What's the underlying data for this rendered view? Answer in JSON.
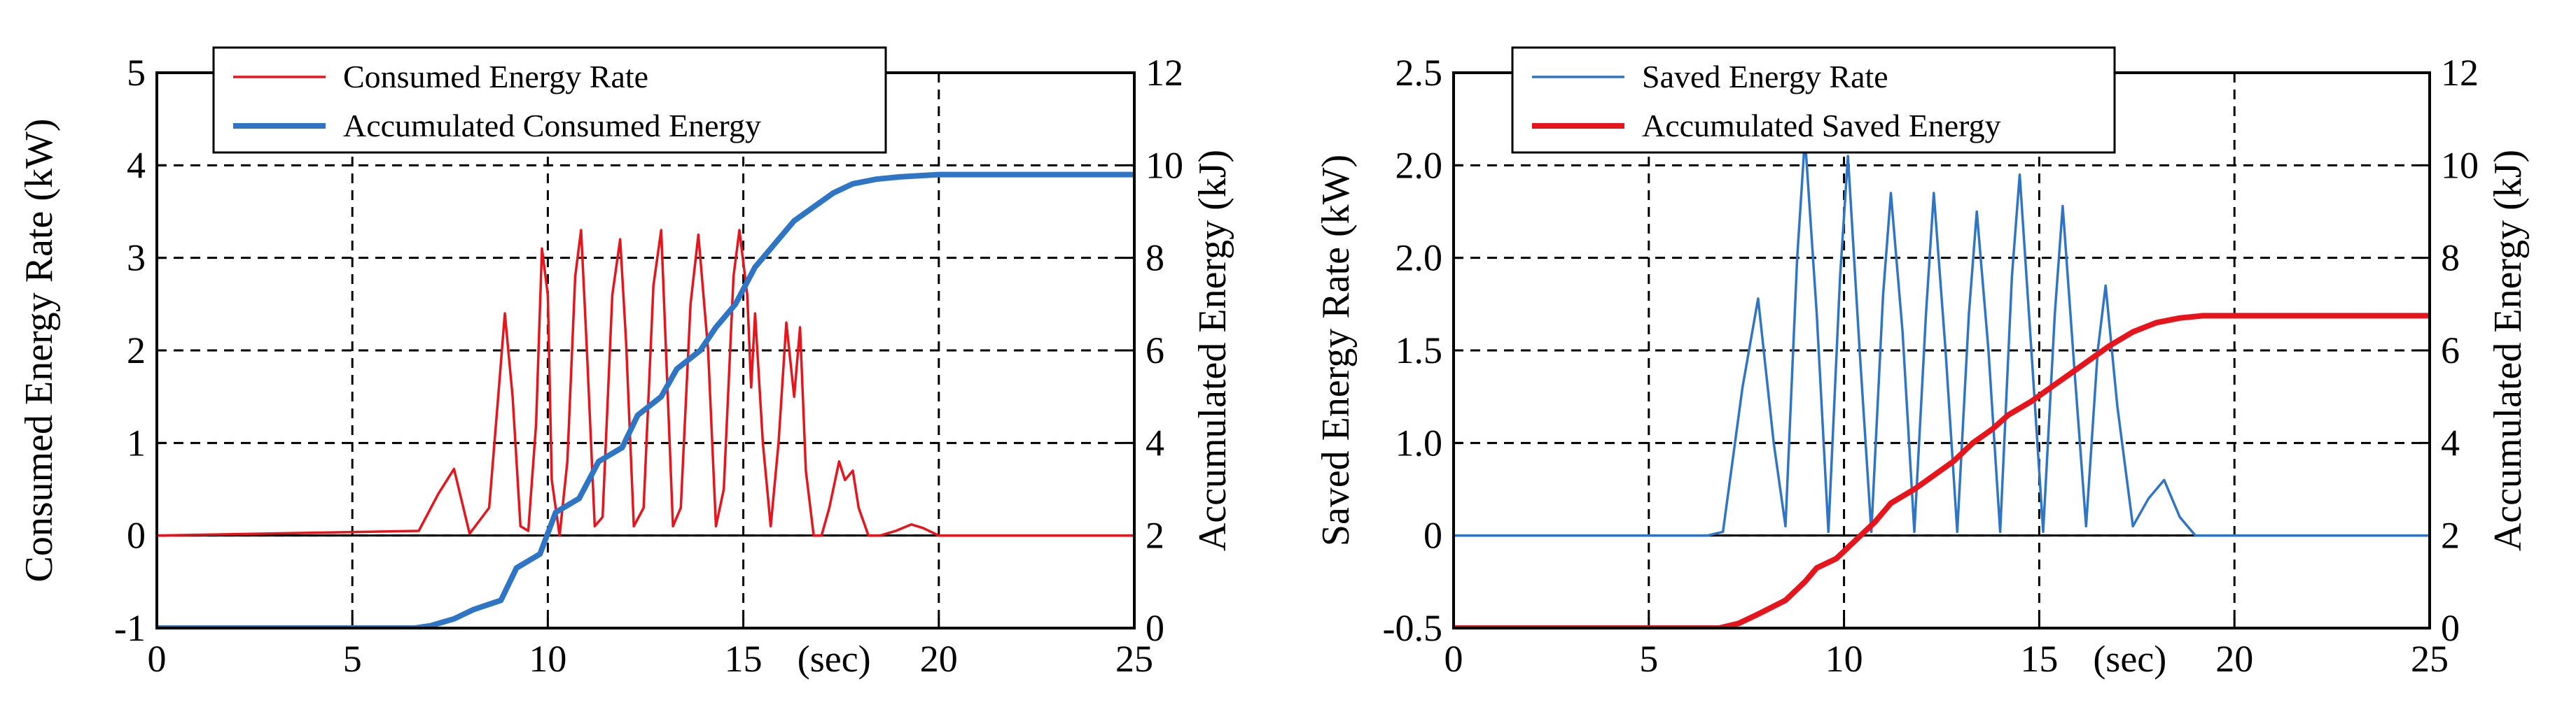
{
  "chart_data": [
    {
      "type": "line",
      "xlim": [
        0,
        25
      ],
      "x_ticks": [
        "0",
        "5",
        "10",
        "15",
        "20",
        "25"
      ],
      "x_unit_label": "(sec)",
      "y_left_label": "Consumed Energy Rate (kW)",
      "y_left_lim": [
        -1,
        5
      ],
      "y_left_ticks": [
        "-1",
        "0",
        "1",
        "2",
        "3",
        "4",
        "5"
      ],
      "y_right_label": "Accumulated Energy (kJ)",
      "y_right_lim": [
        0,
        12
      ],
      "y_right_ticks": [
        "0",
        "2",
        "4",
        "6",
        "8",
        "10",
        "12"
      ],
      "grid": true,
      "legend_position": "top-left",
      "series": [
        {
          "name": "Consumed Energy Rate",
          "axis": "left",
          "color": "#e8141b",
          "x": [
            0,
            6.7,
            7.2,
            7.6,
            8.0,
            8.5,
            8.75,
            8.9,
            9.1,
            9.3,
            9.5,
            9.7,
            9.85,
            10.0,
            10.1,
            10.3,
            10.5,
            10.7,
            10.85,
            11.0,
            11.2,
            11.4,
            11.65,
            11.85,
            12.0,
            12.2,
            12.45,
            12.7,
            12.9,
            13.05,
            13.2,
            13.4,
            13.65,
            13.85,
            14.1,
            14.3,
            14.5,
            14.75,
            14.9,
            15.1,
            15.2,
            15.3,
            15.5,
            15.7,
            15.9,
            16.1,
            16.3,
            16.45,
            16.6,
            16.8,
            17.0,
            17.2,
            17.45,
            17.6,
            17.8,
            17.95,
            18.2,
            18.5,
            18.9,
            19.3,
            19.6,
            20.0,
            25
          ],
          "y": [
            0,
            0.05,
            0.45,
            0.72,
            0.02,
            0.3,
            1.6,
            2.4,
            1.5,
            0.1,
            0.05,
            1.2,
            3.1,
            2.6,
            0.6,
            0.0,
            0.8,
            2.8,
            3.3,
            2.0,
            0.1,
            0.2,
            2.6,
            3.2,
            2.1,
            0.1,
            0.3,
            2.7,
            3.3,
            1.7,
            0.1,
            0.3,
            2.5,
            3.25,
            2.0,
            0.1,
            0.5,
            2.8,
            3.3,
            2.6,
            1.6,
            2.4,
            1.0,
            0.1,
            1.0,
            2.3,
            1.5,
            2.25,
            0.7,
            0.0,
            0.0,
            0.3,
            0.8,
            0.6,
            0.7,
            0.3,
            0.0,
            0.0,
            0.05,
            0.12,
            0.08,
            0.0,
            0.0
          ]
        },
        {
          "name": "Accumulated Consumed Energy",
          "axis": "right",
          "color": "#2e75c6",
          "x": [
            0,
            6.6,
            7.0,
            7.6,
            8.1,
            8.8,
            9.2,
            9.8,
            10.2,
            10.8,
            11.3,
            11.9,
            12.3,
            12.9,
            13.3,
            13.9,
            14.3,
            14.8,
            15.3,
            15.8,
            16.3,
            16.8,
            17.3,
            17.8,
            18.4,
            19.0,
            20.0,
            25
          ],
          "y": [
            0.0,
            0.0,
            0.05,
            0.2,
            0.4,
            0.6,
            1.3,
            1.6,
            2.5,
            2.8,
            3.6,
            3.9,
            4.6,
            5.0,
            5.6,
            6.0,
            6.5,
            7.0,
            7.8,
            8.3,
            8.8,
            9.1,
            9.4,
            9.6,
            9.7,
            9.75,
            9.8,
            9.8
          ]
        }
      ]
    },
    {
      "type": "line",
      "xlim": [
        0,
        25
      ],
      "x_ticks": [
        "0",
        "5",
        "10",
        "15",
        "20",
        "25"
      ],
      "x_unit_label": "(sec)",
      "y_left_label": "Saved Energy Rate (kW)",
      "y_left_lim": [
        -0.5,
        2.5
      ],
      "y_left_ticks": [
        "-0.5",
        "0",
        "0.5",
        "1.0",
        "1.5",
        "2.0",
        "2.5"
      ],
      "y_left_tick_display": [
        "-0.5",
        "0",
        "1.0",
        "1.5",
        "2.0",
        "2.0",
        "2.5"
      ],
      "y_right_label": "Accumulated Energy (kJ)",
      "y_right_lim": [
        0,
        12
      ],
      "y_right_ticks": [
        "0",
        "2",
        "4",
        "6",
        "8",
        "10",
        "12"
      ],
      "grid": true,
      "legend_position": "top-left",
      "series": [
        {
          "name": "Saved Energy Rate",
          "axis": "left",
          "color": "#2e75c6",
          "x": [
            0,
            6.5,
            6.9,
            7.4,
            7.8,
            8.2,
            8.5,
            8.8,
            9.0,
            9.3,
            9.6,
            9.9,
            10.1,
            10.4,
            10.7,
            11.0,
            11.2,
            11.5,
            11.8,
            12.1,
            12.3,
            12.6,
            12.9,
            13.2,
            13.4,
            13.7,
            14.0,
            14.3,
            14.5,
            14.8,
            15.1,
            15.4,
            15.6,
            15.9,
            16.2,
            16.5,
            16.7,
            17.0,
            17.4,
            17.8,
            18.2,
            18.6,
            19.0,
            25
          ],
          "y": [
            0,
            0.0,
            0.02,
            0.8,
            1.28,
            0.5,
            0.05,
            1.5,
            2.15,
            1.2,
            0.02,
            1.4,
            2.05,
            1.0,
            0.02,
            1.3,
            1.85,
            1.1,
            0.02,
            1.2,
            1.85,
            1.0,
            0.02,
            1.2,
            1.75,
            1.0,
            0.02,
            1.4,
            1.95,
            1.0,
            0.02,
            1.2,
            1.78,
            0.9,
            0.05,
            1.0,
            1.35,
            0.7,
            0.05,
            0.2,
            0.3,
            0.1,
            0.0,
            0.0
          ]
        },
        {
          "name": "Accumulated Saved Energy",
          "axis": "right",
          "color": "#e8141b",
          "x": [
            0,
            6.8,
            7.3,
            7.8,
            8.5,
            9.0,
            9.3,
            9.8,
            10.3,
            10.8,
            11.2,
            11.8,
            12.3,
            12.8,
            13.3,
            13.8,
            14.2,
            14.8,
            15.3,
            15.8,
            16.3,
            16.8,
            17.4,
            18.0,
            18.6,
            19.2,
            20.0,
            25
          ],
          "y": [
            0.0,
            0.0,
            0.1,
            0.3,
            0.6,
            1.0,
            1.3,
            1.5,
            1.9,
            2.3,
            2.7,
            3.0,
            3.3,
            3.6,
            4.0,
            4.3,
            4.6,
            4.9,
            5.2,
            5.5,
            5.8,
            6.1,
            6.4,
            6.6,
            6.7,
            6.75,
            6.75,
            6.75
          ]
        }
      ]
    }
  ]
}
